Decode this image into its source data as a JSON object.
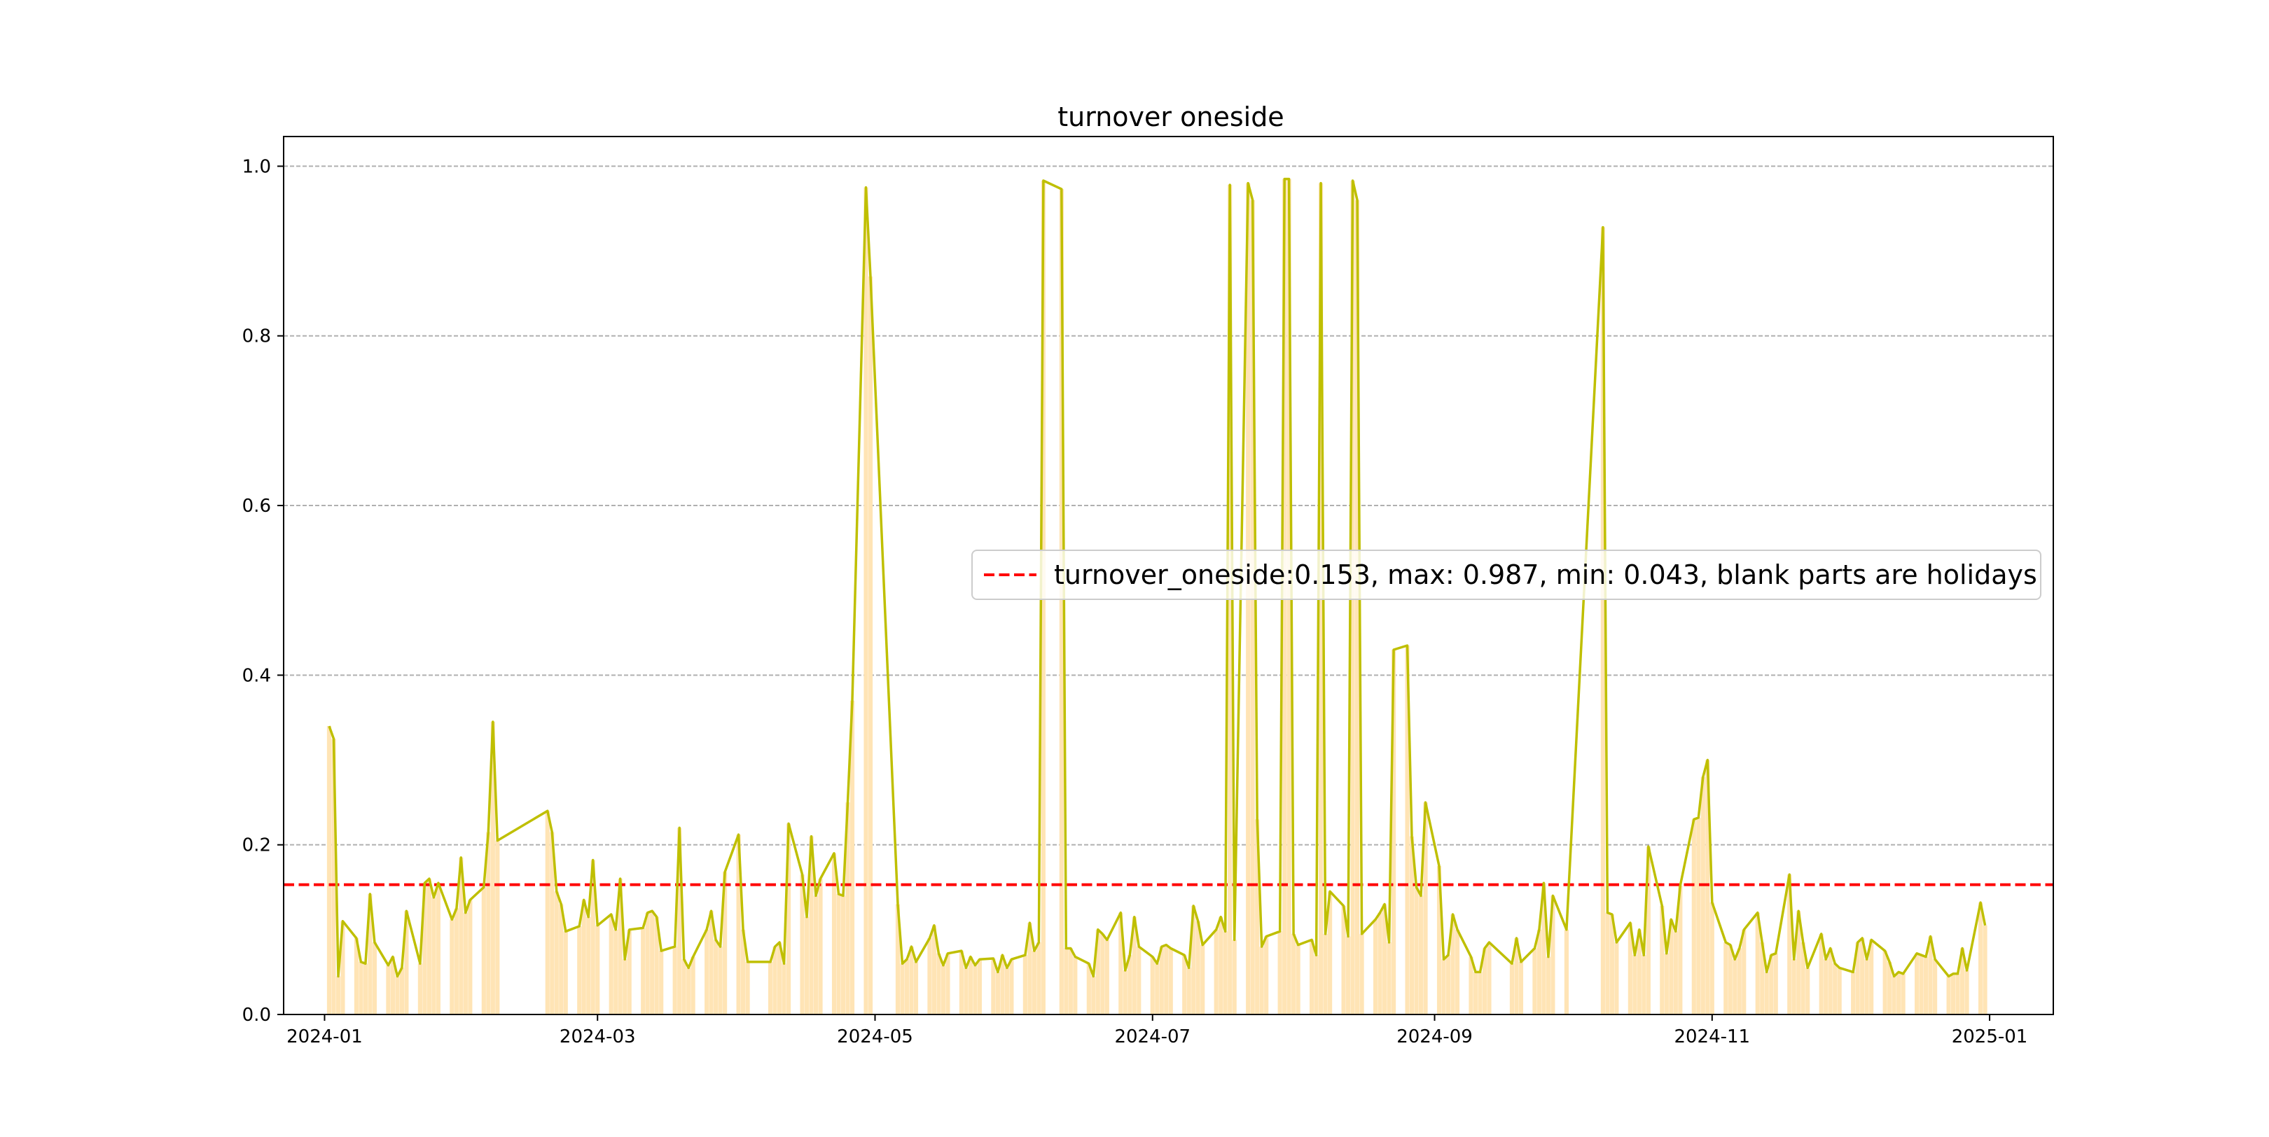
{
  "chart_data": {
    "type": "line",
    "title": "turnover oneside",
    "xlabel": "",
    "ylabel": "",
    "x_range": [
      "2023-12-23",
      "2025-01-15"
    ],
    "ylim": [
      0,
      1.035
    ],
    "x_ticks": [
      "2024-01",
      "2024-03",
      "2024-05",
      "2024-07",
      "2024-09",
      "2024-11",
      "2025-01"
    ],
    "x_tick_dates": [
      "2024-01-01",
      "2024-03-01",
      "2024-05-01",
      "2024-07-01",
      "2024-09-01",
      "2024-11-01",
      "2025-01-01"
    ],
    "y_ticks": [
      "0.0",
      "0.2",
      "0.4",
      "0.6",
      "0.8",
      "1.0"
    ],
    "y_tick_values": [
      0,
      0.2,
      0.4,
      0.6,
      0.8,
      1.0
    ],
    "grid": "horizontal dashed",
    "legend": {
      "position": "center-right",
      "entries": [
        "turnover_oneside:0.153, max: 0.987, min: 0.043, blank parts are holidays"
      ]
    },
    "mean_line": {
      "value": 0.153,
      "color": "#ff0000",
      "style": "dashed"
    },
    "bar_color": "#ffe4b5",
    "line_color": "#bfbf00",
    "series": [
      {
        "x": [
          "2024-01-02",
          "2024-01-03",
          "2024-01-04",
          "2024-01-05",
          "2024-01-08",
          "2024-01-09",
          "2024-01-10",
          "2024-01-11",
          "2024-01-12",
          "2024-01-15",
          "2024-01-16",
          "2024-01-17",
          "2024-01-18",
          "2024-01-19",
          "2024-01-22",
          "2024-01-23",
          "2024-01-24",
          "2024-01-25",
          "2024-01-26",
          "2024-01-29",
          "2024-01-30",
          "2024-01-31",
          "2024-02-01",
          "2024-02-02",
          "2024-02-05",
          "2024-02-06",
          "2024-02-07",
          "2024-02-08",
          "2024-02-19",
          "2024-02-20",
          "2024-02-21",
          "2024-02-22",
          "2024-02-23",
          "2024-02-26",
          "2024-02-27",
          "2024-02-28",
          "2024-02-29",
          "2024-03-01",
          "2024-03-04",
          "2024-03-05",
          "2024-03-06",
          "2024-03-07",
          "2024-03-08",
          "2024-03-11",
          "2024-03-12",
          "2024-03-13",
          "2024-03-14",
          "2024-03-15",
          "2024-03-18",
          "2024-03-19",
          "2024-03-20",
          "2024-03-21",
          "2024-03-22",
          "2024-03-25",
          "2024-03-26",
          "2024-03-27",
          "2024-03-28",
          "2024-03-29",
          "2024-04-01",
          "2024-04-02",
          "2024-04-03",
          "2024-04-08",
          "2024-04-09",
          "2024-04-10",
          "2024-04-11",
          "2024-04-12",
          "2024-04-15",
          "2024-04-16",
          "2024-04-17",
          "2024-04-18",
          "2024-04-19",
          "2024-04-22",
          "2024-04-23",
          "2024-04-24",
          "2024-04-25",
          "2024-04-26",
          "2024-04-29",
          "2024-04-30",
          "2024-05-06",
          "2024-05-07",
          "2024-05-08",
          "2024-05-09",
          "2024-05-10",
          "2024-05-13",
          "2024-05-14",
          "2024-05-15",
          "2024-05-16",
          "2024-05-17",
          "2024-05-20",
          "2024-05-21",
          "2024-05-22",
          "2024-05-23",
          "2024-05-24",
          "2024-05-27",
          "2024-05-28",
          "2024-05-29",
          "2024-05-30",
          "2024-05-31",
          "2024-06-03",
          "2024-06-04",
          "2024-06-05",
          "2024-06-06",
          "2024-06-07",
          "2024-06-11",
          "2024-06-12",
          "2024-06-13",
          "2024-06-14",
          "2024-06-17",
          "2024-06-18",
          "2024-06-19",
          "2024-06-20",
          "2024-06-21",
          "2024-06-24",
          "2024-06-25",
          "2024-06-26",
          "2024-06-27",
          "2024-06-28",
          "2024-07-01",
          "2024-07-02",
          "2024-07-03",
          "2024-07-04",
          "2024-07-05",
          "2024-07-08",
          "2024-07-09",
          "2024-07-10",
          "2024-07-11",
          "2024-07-12",
          "2024-07-15",
          "2024-07-16",
          "2024-07-17",
          "2024-07-18",
          "2024-07-19",
          "2024-07-22",
          "2024-07-23",
          "2024-07-24",
          "2024-07-25",
          "2024-07-26",
          "2024-07-29",
          "2024-07-30",
          "2024-07-31",
          "2024-08-01",
          "2024-08-02",
          "2024-08-05",
          "2024-08-06",
          "2024-08-07",
          "2024-08-08",
          "2024-08-09",
          "2024-08-12",
          "2024-08-13",
          "2024-08-14",
          "2024-08-15",
          "2024-08-16",
          "2024-08-19",
          "2024-08-20",
          "2024-08-21",
          "2024-08-22",
          "2024-08-23",
          "2024-08-26",
          "2024-08-27",
          "2024-08-28",
          "2024-08-29",
          "2024-08-30",
          "2024-09-02",
          "2024-09-03",
          "2024-09-04",
          "2024-09-05",
          "2024-09-06",
          "2024-09-09",
          "2024-09-10",
          "2024-09-11",
          "2024-09-12",
          "2024-09-13",
          "2024-09-18",
          "2024-09-19",
          "2024-09-20",
          "2024-09-23",
          "2024-09-24",
          "2024-09-25",
          "2024-09-26",
          "2024-09-27",
          "2024-09-30",
          "2024-10-08",
          "2024-10-09",
          "2024-10-10",
          "2024-10-11",
          "2024-10-14",
          "2024-10-15",
          "2024-10-16",
          "2024-10-17",
          "2024-10-18",
          "2024-10-21",
          "2024-10-22",
          "2024-10-23",
          "2024-10-24",
          "2024-10-25",
          "2024-10-28",
          "2024-10-29",
          "2024-10-30",
          "2024-10-31",
          "2024-11-01",
          "2024-11-04",
          "2024-11-05",
          "2024-11-06",
          "2024-11-07",
          "2024-11-08",
          "2024-11-11",
          "2024-11-12",
          "2024-11-13",
          "2024-11-14",
          "2024-11-15",
          "2024-11-18",
          "2024-11-19",
          "2024-11-20",
          "2024-11-21",
          "2024-11-22",
          "2024-11-25",
          "2024-11-26",
          "2024-11-27",
          "2024-11-28",
          "2024-11-29",
          "2024-12-02",
          "2024-12-03",
          "2024-12-04",
          "2024-12-05",
          "2024-12-06",
          "2024-12-09",
          "2024-12-10",
          "2024-12-11",
          "2024-12-12",
          "2024-12-13",
          "2024-12-16",
          "2024-12-17",
          "2024-12-18",
          "2024-12-19",
          "2024-12-20",
          "2024-12-23",
          "2024-12-24",
          "2024-12-25",
          "2024-12-26",
          "2024-12-27",
          "2024-12-30",
          "2024-12-31"
        ],
        "values": [
          0.34,
          0.325,
          0.045,
          0.11,
          0.09,
          0.062,
          0.06,
          0.142,
          0.085,
          0.058,
          0.068,
          0.045,
          0.055,
          0.122,
          0.06,
          0.155,
          0.16,
          0.138,
          0.155,
          0.112,
          0.125,
          0.185,
          0.12,
          0.135,
          0.15,
          0.215,
          0.345,
          0.205,
          0.24,
          0.215,
          0.145,
          0.13,
          0.098,
          0.104,
          0.135,
          0.115,
          0.182,
          0.105,
          0.118,
          0.1,
          0.16,
          0.065,
          0.1,
          0.102,
          0.12,
          0.122,
          0.115,
          0.075,
          0.08,
          0.22,
          0.065,
          0.055,
          0.068,
          0.1,
          0.122,
          0.088,
          0.08,
          0.168,
          0.212,
          0.1,
          0.062,
          0.062,
          0.08,
          0.085,
          0.06,
          0.225,
          0.165,
          0.115,
          0.21,
          0.14,
          0.16,
          0.19,
          0.142,
          0.14,
          0.25,
          0.37,
          0.975,
          0.87,
          0.13,
          0.06,
          0.065,
          0.08,
          0.062,
          0.09,
          0.105,
          0.072,
          0.058,
          0.072,
          0.075,
          0.055,
          0.068,
          0.058,
          0.065,
          0.066,
          0.05,
          0.07,
          0.055,
          0.065,
          0.07,
          0.108,
          0.075,
          0.085,
          0.983,
          0.973,
          0.078,
          0.078,
          0.068,
          0.06,
          0.045,
          0.1,
          0.095,
          0.088,
          0.12,
          0.052,
          0.07,
          0.115,
          0.08,
          0.068,
          0.06,
          0.08,
          0.082,
          0.078,
          0.07,
          0.055,
          0.128,
          0.11,
          0.082,
          0.1,
          0.115,
          0.098,
          0.978,
          0.088,
          0.98,
          0.96,
          0.23,
          0.08,
          0.092,
          0.098,
          0.985,
          0.985,
          0.095,
          0.082,
          0.088,
          0.07,
          0.98,
          0.095,
          0.145,
          0.128,
          0.092,
          0.983,
          0.96,
          0.095,
          0.112,
          0.12,
          0.13,
          0.085,
          0.43,
          0.435,
          0.21,
          0.15,
          0.14,
          0.25,
          0.175,
          0.065,
          0.07,
          0.118,
          0.1,
          0.068,
          0.05,
          0.05,
          0.078,
          0.085,
          0.06,
          0.09,
          0.062,
          0.078,
          0.1,
          0.155,
          0.068,
          0.14,
          0.1,
          0.928,
          0.12,
          0.118,
          0.085,
          0.108,
          0.07,
          0.1,
          0.07,
          0.198,
          0.128,
          0.072,
          0.112,
          0.098,
          0.152,
          0.23,
          0.232,
          0.28,
          0.3,
          0.132,
          0.085,
          0.082,
          0.065,
          0.078,
          0.1,
          0.12,
          0.085,
          0.05,
          0.07,
          0.072,
          0.165,
          0.065,
          0.122,
          0.085,
          0.055,
          0.095,
          0.065,
          0.078,
          0.06,
          0.055,
          0.05,
          0.085,
          0.09,
          0.065,
          0.088,
          0.075,
          0.062,
          0.045,
          0.05,
          0.048,
          0.072,
          0.07,
          0.068,
          0.092,
          0.065,
          0.045,
          0.048,
          0.048,
          0.078,
          0.052,
          0.132,
          0.105
        ]
      }
    ]
  }
}
